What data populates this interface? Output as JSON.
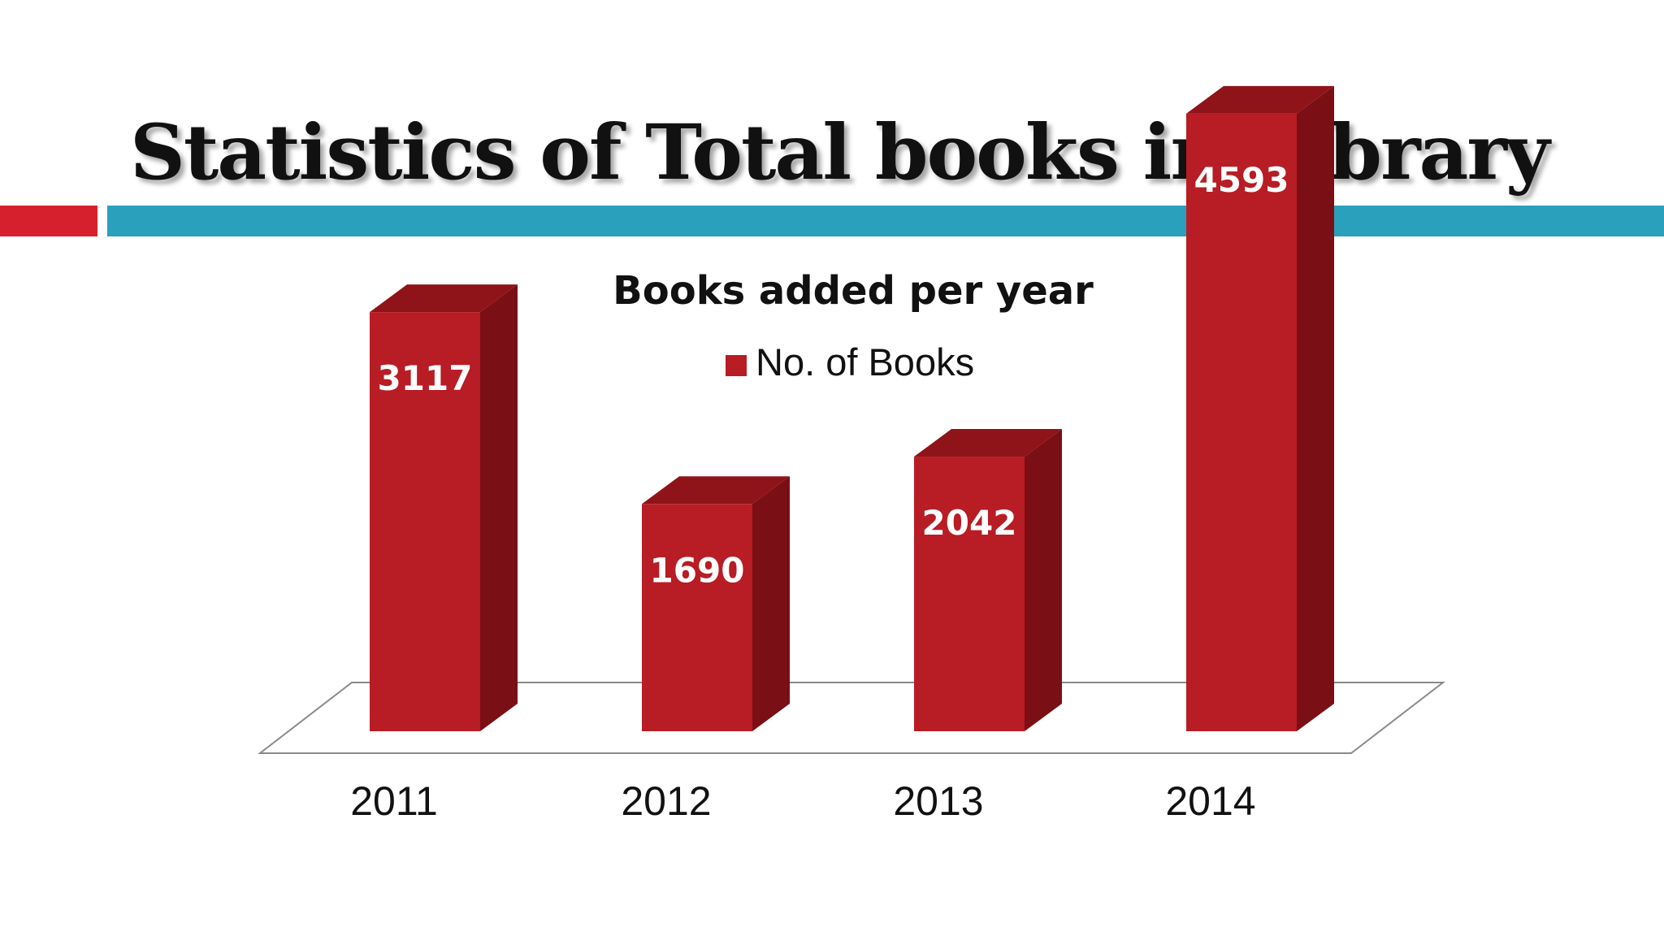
{
  "slide": {
    "title": "Statistics of Total books in Library",
    "accent_red": "#d7202e",
    "accent_blue": "#2ba0bd"
  },
  "chart_data": {
    "type": "bar",
    "title": "Books added per year",
    "categories": [
      "2011",
      "2012",
      "2013",
      "2014"
    ],
    "series": [
      {
        "name": "No. of Books",
        "values": [
          3117,
          1690,
          2042,
          4593
        ]
      }
    ],
    "legend": "top",
    "grid": false,
    "three_d": true,
    "colors": {
      "front": "#b81c24",
      "top": "#8e141a",
      "side": "#7a0f15",
      "label": "#ffffff"
    }
  }
}
